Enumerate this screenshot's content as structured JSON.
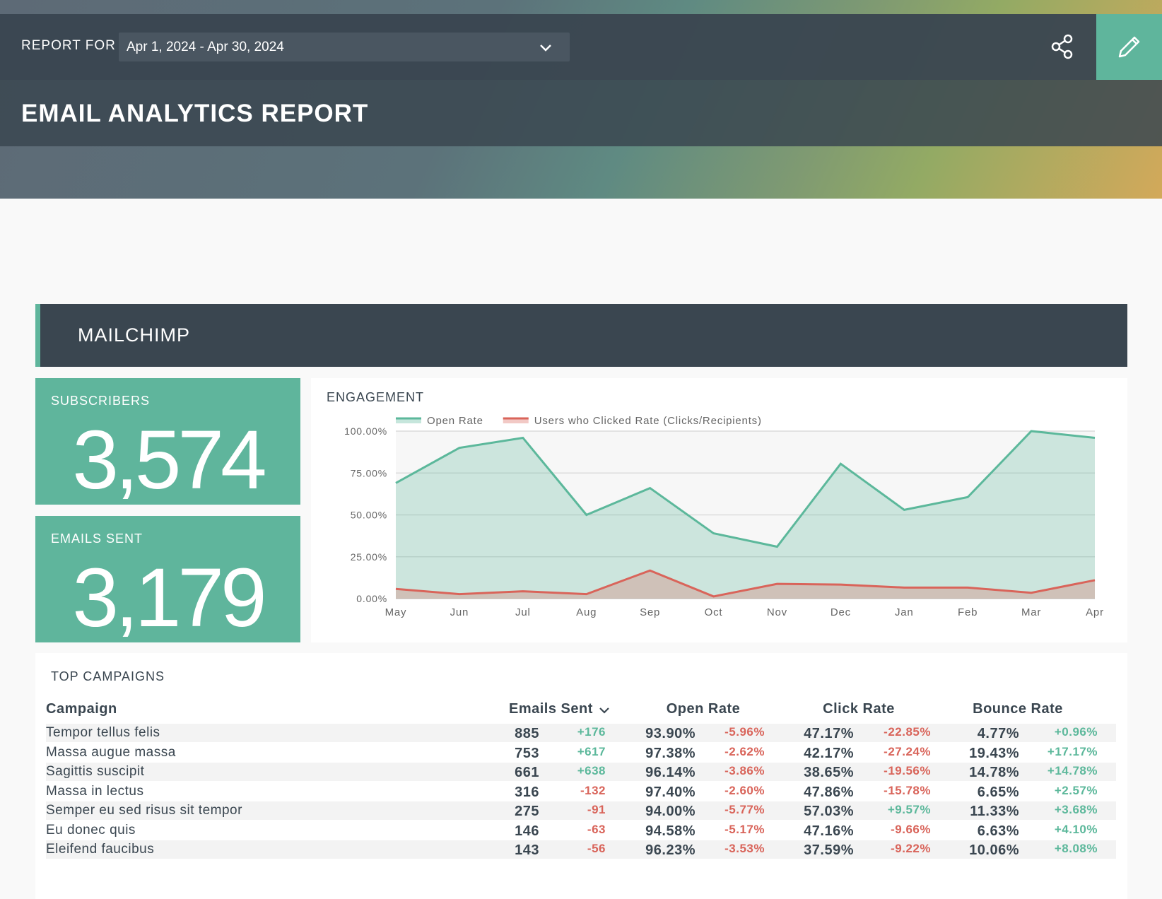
{
  "header": {
    "label": "REPORT FOR",
    "date_range": "Apr 1, 2024 - Apr 30, 2024",
    "title": "EMAIL ANALYTICS REPORT"
  },
  "section": {
    "title": "MAILCHIMP"
  },
  "kpis": [
    {
      "label": "SUBSCRIBERS",
      "value": "3,574"
    },
    {
      "label": "EMAILS SENT",
      "value": "3,179"
    }
  ],
  "chart_data": {
    "type": "area",
    "title": "ENGAGEMENT",
    "categories": [
      "May",
      "Jun",
      "Jul",
      "Aug",
      "Sep",
      "Oct",
      "Nov",
      "Dec",
      "Jan",
      "Feb",
      "Mar",
      "Apr"
    ],
    "series": [
      {
        "name": "Open Rate",
        "color": "#5cb89b",
        "values": [
          69,
          90,
          96,
          50,
          66,
          39,
          31,
          80.5,
          53,
          60.6,
          100,
          96
        ]
      },
      {
        "name": "Users who Clicked Rate (Clicks/Recipients)",
        "color": "#d9645a",
        "values": [
          5.8,
          2.7,
          4.4,
          2.7,
          16.8,
          1.3,
          8.8,
          8.4,
          6.6,
          6.6,
          3.5,
          11
        ]
      }
    ],
    "ylim": [
      0,
      100
    ],
    "yticks": [
      {
        "value": 0,
        "label": "0.00%"
      },
      {
        "value": 25,
        "label": "25.00%"
      },
      {
        "value": 50,
        "label": "50.00%"
      },
      {
        "value": 75,
        "label": "75.00%"
      },
      {
        "value": 100,
        "label": "100.00%"
      }
    ],
    "grid": true,
    "legend": "top"
  },
  "table": {
    "title": "TOP CAMPAIGNS",
    "columns": [
      "Campaign",
      "Emails Sent",
      "Open Rate",
      "Click Rate",
      "Bounce Rate"
    ],
    "rows": [
      [
        "Tempor tellus felis",
        "885",
        "+176",
        "93.90%",
        "-5.96%",
        "47.17%",
        "-22.85%",
        "4.77%",
        "+0.96%"
      ],
      [
        "Massa augue massa",
        "753",
        "+617",
        "97.38%",
        "-2.62%",
        "42.17%",
        "-27.24%",
        "19.43%",
        "+17.17%"
      ],
      [
        "Sagittis suscipit",
        "661",
        "+638",
        "96.14%",
        "-3.86%",
        "38.65%",
        "-19.56%",
        "14.78%",
        "+14.78%"
      ],
      [
        "Massa in lectus",
        "316",
        "-132",
        "97.40%",
        "-2.60%",
        "47.86%",
        "-15.78%",
        "6.65%",
        "+2.57%"
      ],
      [
        "Semper eu sed risus sit tempor",
        "275",
        "-91",
        "94.00%",
        "-5.77%",
        "57.03%",
        "+9.57%",
        "11.33%",
        "+3.68%"
      ],
      [
        "Eu donec quis",
        "146",
        "-63",
        "94.58%",
        "-5.17%",
        "47.16%",
        "-9.66%",
        "6.63%",
        "+4.10%"
      ],
      [
        "Eleifend faucibus",
        "143",
        "-56",
        "96.23%",
        "-3.53%",
        "37.59%",
        "-9.22%",
        "10.06%",
        "+8.08%"
      ]
    ]
  }
}
